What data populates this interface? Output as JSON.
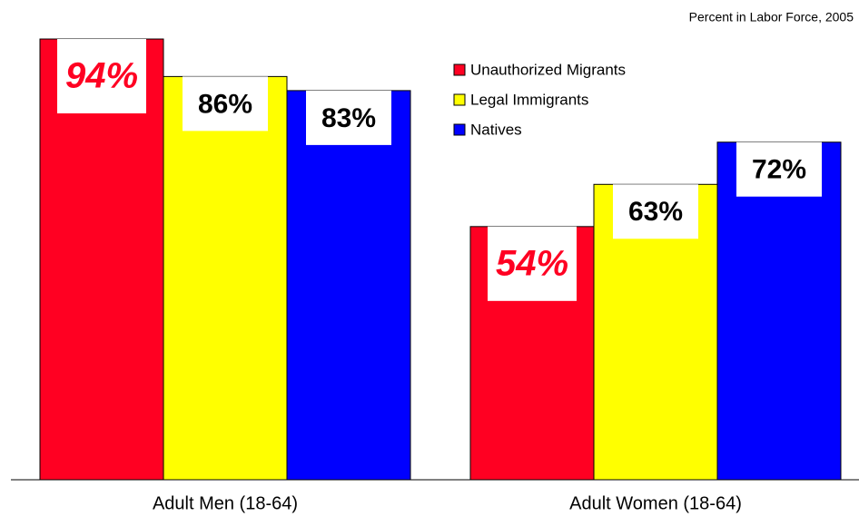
{
  "chart_data": {
    "type": "bar",
    "subtitle": "Percent in Labor Force, 2005",
    "categories": [
      "Adult Men (18-64)",
      "Adult Women (18-64)"
    ],
    "series": [
      {
        "name": "Unauthorized Migrants",
        "color": "#ff0022",
        "label_color": "#ff0022",
        "values": [
          94,
          54
        ],
        "value_labels": [
          "94%",
          "54%"
        ]
      },
      {
        "name": "Legal Immigrants",
        "color": "#ffff00",
        "label_color": "#000000",
        "values": [
          86,
          63
        ],
        "value_labels": [
          "86%",
          "63%"
        ]
      },
      {
        "name": "Natives",
        "color": "#0000ff",
        "label_color": "#000000",
        "values": [
          83,
          72
        ],
        "value_labels": [
          "83%",
          "72%"
        ]
      }
    ],
    "ylim": [
      0,
      100
    ],
    "grid": false,
    "legend": "top-right"
  }
}
